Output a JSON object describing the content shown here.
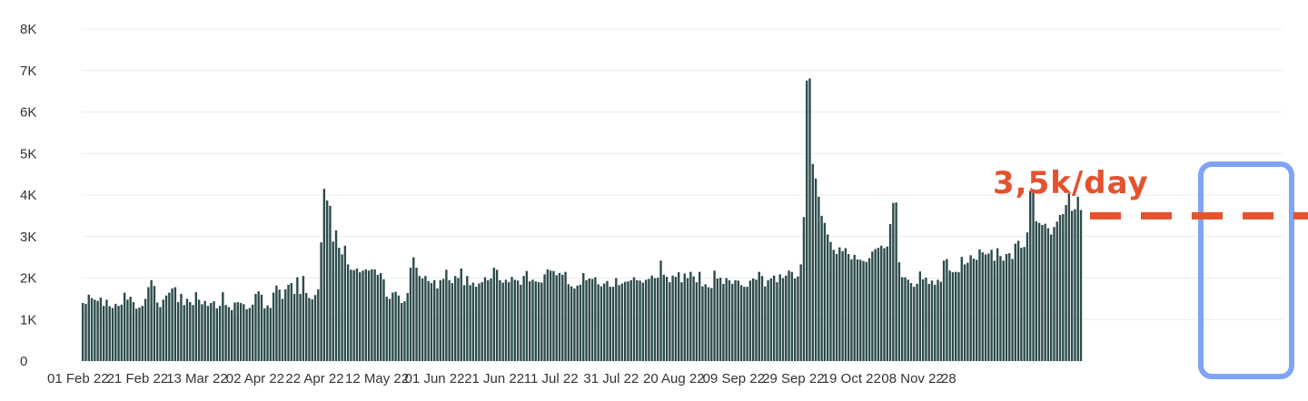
{
  "chart_data": {
    "type": "bar",
    "title": "",
    "xlabel": "",
    "ylabel": "",
    "ylim": [
      0,
      8000
    ],
    "grid": true,
    "bar_color": "#2d4b4b",
    "yticks": [
      "0",
      "1K",
      "2K",
      "3K",
      "4K",
      "5K",
      "6K",
      "7K",
      "8K"
    ],
    "xticks": [
      "01 Feb 22",
      "21 Feb 22",
      "13 Mar 22",
      "02 Apr 22",
      "22 Apr 22",
      "12 May 22",
      "01 Jun 22",
      "21 Jun 22",
      "11 Jul 22",
      "31 Jul 22",
      "20 Aug 22",
      "09 Sep 22",
      "29 Sep 22",
      "19 Oct 22",
      "08 Nov 22",
      "28"
    ],
    "start_date": "2022-02-01",
    "values": [
      1400,
      1380,
      1600,
      1520,
      1480,
      1450,
      1530,
      1330,
      1480,
      1320,
      1280,
      1380,
      1330,
      1360,
      1650,
      1480,
      1550,
      1420,
      1260,
      1290,
      1330,
      1500,
      1780,
      1950,
      1810,
      1410,
      1300,
      1480,
      1580,
      1650,
      1750,
      1780,
      1420,
      1620,
      1350,
      1500,
      1420,
      1350,
      1660,
      1480,
      1370,
      1450,
      1330,
      1400,
      1440,
      1270,
      1330,
      1660,
      1350,
      1300,
      1230,
      1410,
      1420,
      1400,
      1370,
      1250,
      1280,
      1360,
      1620,
      1680,
      1600,
      1270,
      1340,
      1280,
      1650,
      1820,
      1720,
      1500,
      1730,
      1840,
      1880,
      1620,
      2020,
      1620,
      2050,
      1640,
      1520,
      1490,
      1590,
      1730,
      2860,
      4150,
      3870,
      3740,
      2880,
      3150,
      2730,
      2570,
      2780,
      2330,
      2200,
      2190,
      2230,
      2140,
      2180,
      2210,
      2180,
      2210,
      2210,
      2080,
      2120,
      1970,
      1550,
      1500,
      1650,
      1670,
      1580,
      1400,
      1440,
      1640,
      2250,
      2500,
      2250,
      2050,
      1990,
      2050,
      1930,
      1880,
      1950,
      1750,
      1950,
      1980,
      2200,
      1950,
      1880,
      2050,
      2000,
      2230,
      1830,
      2050,
      1830,
      1890,
      1790,
      1870,
      1900,
      2020,
      1950,
      1990,
      2250,
      2200,
      1950,
      1890,
      1960,
      1900,
      2030,
      1960,
      1940,
      1840,
      2050,
      2170,
      1920,
      1960,
      1920,
      1900,
      1890,
      2090,
      2210,
      2180,
      2170,
      2070,
      2120,
      2080,
      2150,
      1850,
      1800,
      1750,
      1820,
      1840,
      2120,
      1950,
      1990,
      1980,
      2020,
      1850,
      1800,
      1870,
      1930,
      1790,
      1790,
      2000,
      1830,
      1870,
      1910,
      1920,
      1950,
      2020,
      1950,
      1940,
      1890,
      1960,
      1980,
      2060,
      2000,
      2010,
      2420,
      2080,
      2030,
      1900,
      2060,
      2030,
      2140,
      1900,
      2110,
      2000,
      2150,
      2040,
      1900,
      2150,
      1800,
      1850,
      1780,
      1760,
      2180,
      1990,
      2010,
      1860,
      2000,
      1950,
      1860,
      1950,
      1940,
      1830,
      1790,
      1790,
      1940,
      1990,
      1960,
      2150,
      2050,
      1800,
      1950,
      1990,
      2060,
      1900,
      2090,
      2000,
      2060,
      2180,
      2150,
      1990,
      2040,
      2330,
      3470,
      6760,
      6810,
      4750,
      4400,
      3960,
      3500,
      3330,
      3050,
      2870,
      2680,
      2580,
      2740,
      2650,
      2720,
      2580,
      2450,
      2560,
      2450,
      2440,
      2410,
      2390,
      2480,
      2640,
      2700,
      2730,
      2780,
      2720,
      2760,
      3300,
      3810,
      3820,
      2380,
      2020,
      2020,
      1960,
      1880,
      1790,
      1860,
      2160,
      1970,
      2010,
      1860,
      1940,
      1840,
      1960,
      1910,
      2420,
      2460,
      2180,
      2140,
      2150,
      2140,
      2510,
      2330,
      2370,
      2550,
      2470,
      2440,
      2690,
      2620,
      2570,
      2590,
      2680,
      2420,
      2720,
      2530,
      2420,
      2580,
      2600,
      2460,
      2830,
      2900,
      2730,
      2750,
      3100,
      4100,
      4130,
      3370,
      3330,
      3280,
      3310,
      3200,
      3050,
      3230,
      3360,
      3520,
      3540,
      3760,
      4040,
      3620,
      3660,
      3960,
      3640
    ],
    "annotations": [
      {
        "type": "text",
        "text": "3,5k/day"
      },
      {
        "type": "hline",
        "y": 3500,
        "style": "dashed",
        "color": "#e4522e"
      },
      {
        "type": "highlight_box",
        "color": "#7fa4f5",
        "range": "last three weeks"
      }
    ]
  }
}
